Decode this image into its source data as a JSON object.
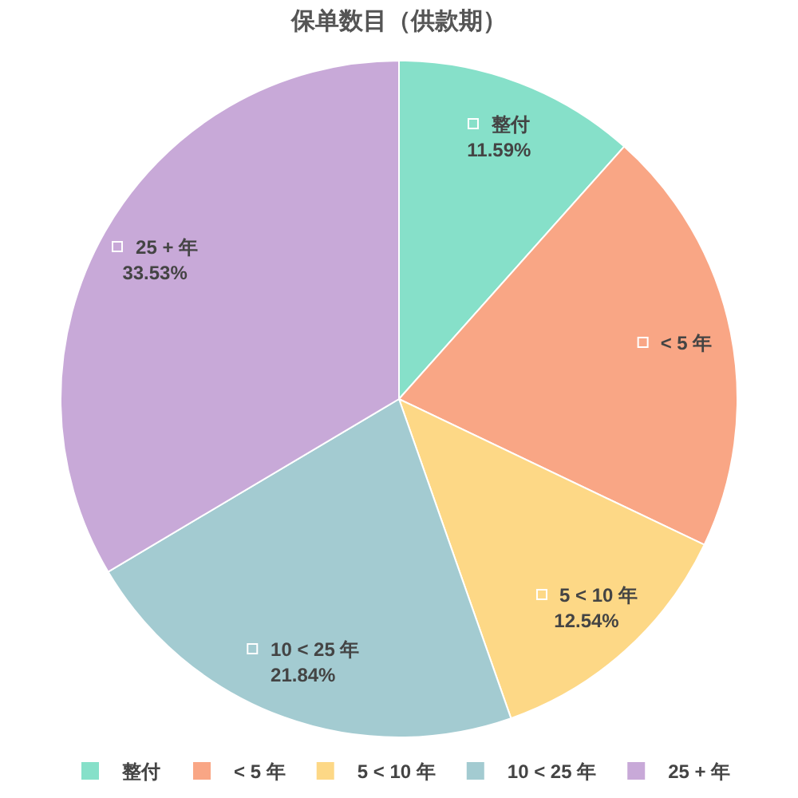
{
  "chart_data": {
    "type": "pie",
    "title": "保单数目（供款期）",
    "categories": [
      "整付",
      "< 5 年",
      "5 < 10 年",
      "10 < 25 年",
      "25 + 年"
    ],
    "values": [
      11.59,
      20.5,
      12.54,
      21.84,
      33.53
    ],
    "colors": [
      "#86e0c9",
      "#f9a685",
      "#fdd886",
      "#a3cbd1",
      "#c8a9d8"
    ],
    "value_labels": [
      "11.59%",
      null,
      "12.54%",
      "21.84%",
      "33.53%"
    ],
    "legend": "bottom"
  }
}
